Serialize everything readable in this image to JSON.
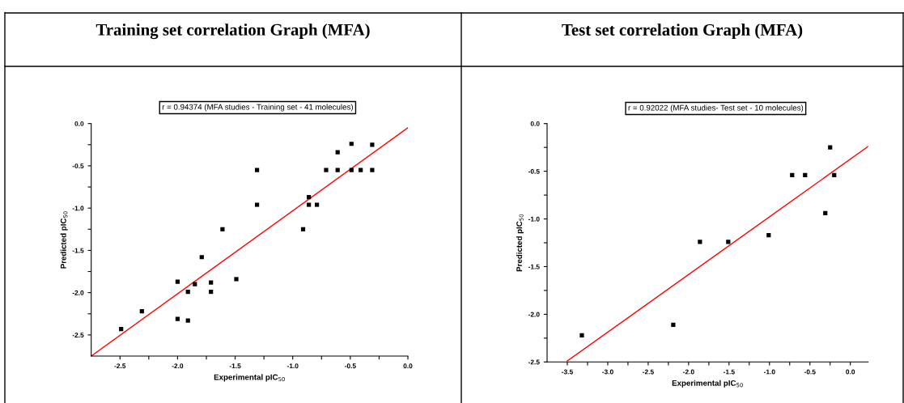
{
  "chart_data": [
    {
      "type": "scatter",
      "title": "Training set correlation Graph (MFA)",
      "xlabel": "Experimental pIC$_{50}$",
      "ylabel": "Predicted pIC$_{50}$",
      "annotations": [
        "r = 0.94374 (MFA studies - Training set - 41 molecules)"
      ],
      "xlim": [
        -2.75,
        0
      ],
      "ylim": [
        -2.75,
        0
      ],
      "xticks": [
        {
          "value": -2.5,
          "label": "-2.5"
        },
        {
          "value": -2.25,
          "label": null
        },
        {
          "value": -2.0,
          "label": "-2.0"
        },
        {
          "value": -1.75,
          "label": null
        },
        {
          "value": -1.5,
          "label": "-1.5"
        },
        {
          "value": -1.25,
          "label": null
        },
        {
          "value": -1.0,
          "label": "-1.0"
        },
        {
          "value": -0.75,
          "label": null
        },
        {
          "value": -0.5,
          "label": "-0.5"
        },
        {
          "value": -0.25,
          "label": null
        },
        {
          "value": 0.0,
          "label": "0.0"
        }
      ],
      "yticks": [
        {
          "value": -2.5,
          "label": "-2.5"
        },
        {
          "value": -2.25,
          "label": null
        },
        {
          "value": -2.0,
          "label": "-2.0"
        },
        {
          "value": -1.75,
          "label": null
        },
        {
          "value": -1.5,
          "label": "-1.5"
        },
        {
          "value": -1.25,
          "label": null
        },
        {
          "value": -1.0,
          "label": "-1.0"
        },
        {
          "value": -0.75,
          "label": null
        },
        {
          "value": -0.5,
          "label": "-0.5"
        },
        {
          "value": -0.25,
          "label": null
        },
        {
          "value": 0.0,
          "label": "0.0"
        }
      ],
      "grid": false,
      "series": [
        {
          "color": "#000000",
          "marker": "square",
          "x": [
            -2.49,
            -2.31,
            -2.0,
            -2.0,
            -1.91,
            -1.91,
            -1.85,
            -1.79,
            -1.71,
            -1.71,
            -1.61,
            -1.49,
            -1.31,
            -1.31,
            -0.91,
            -0.86,
            -0.86,
            -0.79,
            -0.71,
            -0.61,
            -0.61,
            -0.49,
            -0.49,
            -0.41,
            -0.31,
            -0.31
          ],
          "values": [
            -2.43,
            -2.22,
            -1.87,
            -2.31,
            -1.99,
            -2.33,
            -1.9,
            -1.58,
            -1.88,
            -1.99,
            -1.25,
            -1.84,
            -0.55,
            -0.96,
            -1.25,
            -0.87,
            -0.96,
            -0.96,
            -0.55,
            -0.34,
            -0.55,
            -0.24,
            -0.55,
            -0.55,
            -0.25,
            -0.55
          ]
        },
        {
          "type": "line",
          "color": "#ff0000",
          "marker": "none",
          "line_style": "solid",
          "x": [
            -2.75,
            0.0
          ],
          "values": [
            -2.75,
            -0.05
          ]
        }
      ]
    },
    {
      "type": "scatter",
      "title": "Test set correlation Graph (MFA)",
      "xlabel": "Experimental pIC$_{50}$",
      "ylabel": "Predicted pIC$_{50}$",
      "annotations": [
        "r = 0.92022 (MFA studies- Test set - 10 molecules)"
      ],
      "xlim": [
        -3.75,
        0.22
      ],
      "ylim": [
        -2.5,
        0
      ],
      "xticks": [
        {
          "value": -3.5,
          "label": "-3.5"
        },
        {
          "value": -3.25,
          "label": null
        },
        {
          "value": -3.0,
          "label": "-3.0"
        },
        {
          "value": -2.75,
          "label": null
        },
        {
          "value": -2.5,
          "label": "-2.5"
        },
        {
          "value": -2.25,
          "label": null
        },
        {
          "value": -2.0,
          "label": "-2.0"
        },
        {
          "value": -1.75,
          "label": null
        },
        {
          "value": -1.5,
          "label": "-1.5"
        },
        {
          "value": -1.25,
          "label": null
        },
        {
          "value": -1.0,
          "label": "-1.0"
        },
        {
          "value": -0.75,
          "label": null
        },
        {
          "value": -0.5,
          "label": "-0.5"
        },
        {
          "value": -0.25,
          "label": null
        },
        {
          "value": 0.0,
          "label": "0.0"
        }
      ],
      "yticks": [
        {
          "value": -2.5,
          "label": "-2.5"
        },
        {
          "value": -2.25,
          "label": null
        },
        {
          "value": -2.0,
          "label": "-2.0"
        },
        {
          "value": -1.75,
          "label": null
        },
        {
          "value": -1.5,
          "label": "-1.5"
        },
        {
          "value": -1.25,
          "label": null
        },
        {
          "value": -1.0,
          "label": "-1.0"
        },
        {
          "value": -0.75,
          "label": null
        },
        {
          "value": -0.5,
          "label": "-0.5"
        },
        {
          "value": -0.25,
          "label": null
        },
        {
          "value": 0.0,
          "label": "0.0"
        }
      ],
      "grid": false,
      "series": [
        {
          "color": "#000000",
          "marker": "square",
          "x": [
            -3.32,
            -2.19,
            -1.86,
            -1.51,
            -1.01,
            -0.72,
            -0.56,
            -0.31,
            -0.25,
            -0.2
          ],
          "values": [
            -2.22,
            -2.11,
            -1.24,
            -1.24,
            -1.17,
            -0.54,
            -0.54,
            -0.94,
            -0.25,
            -0.54
          ]
        },
        {
          "type": "line",
          "color": "#ff0000",
          "marker": "none",
          "line_style": "solid",
          "x": [
            -3.5,
            0.22
          ],
          "values": [
            -2.49,
            -0.24
          ]
        }
      ]
    }
  ]
}
